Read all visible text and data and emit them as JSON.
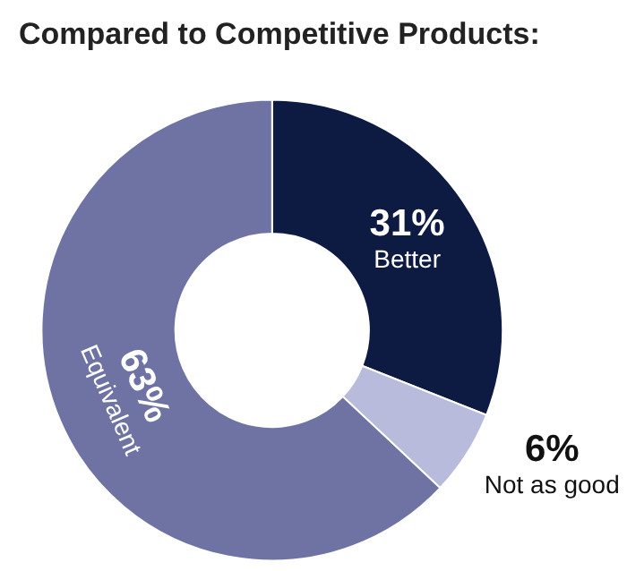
{
  "chart_data": {
    "type": "donut",
    "title": "Compared to Competitive Products:",
    "categories": [
      "Better",
      "Not as good",
      "Equivalent"
    ],
    "values": [
      31,
      6,
      63
    ],
    "value_labels": [
      "31%",
      "6%",
      "63%"
    ],
    "colors": [
      "#0d1a42",
      "#b8bbdb",
      "#6e73a4"
    ],
    "legend": false
  }
}
